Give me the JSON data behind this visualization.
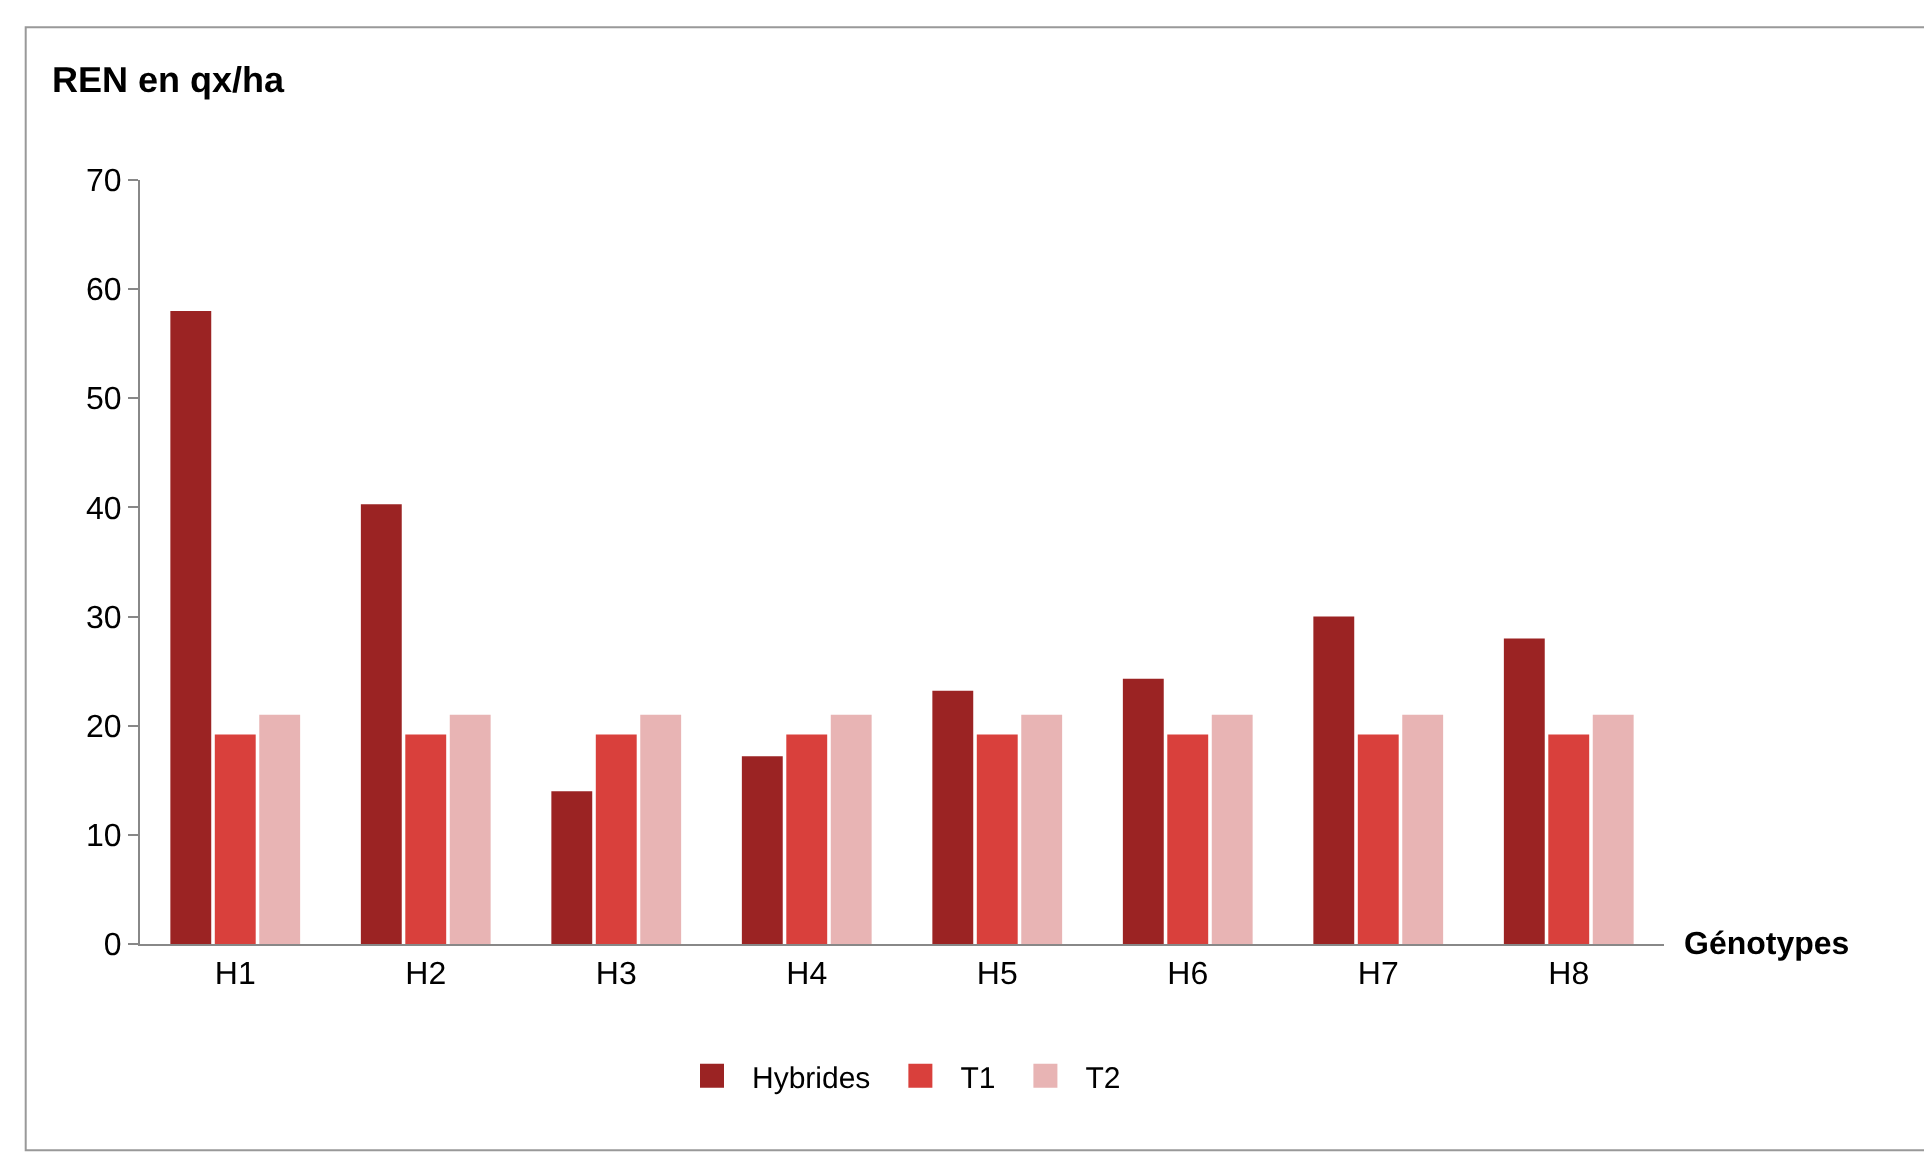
{
  "chart_data": {
    "type": "bar",
    "ylabel": "REN en qx/ha",
    "xlabel": "Génotypes",
    "categories": [
      "H1",
      "H2",
      "H3",
      "H4",
      "H5",
      "H6",
      "H7",
      "H8"
    ],
    "series": [
      {
        "name": "Hybrides",
        "color": "#9b2323",
        "values": [
          58,
          40.3,
          14,
          17.2,
          23.2,
          24.3,
          30,
          28
        ]
      },
      {
        "name": "T1",
        "color": "#d9403c",
        "values": [
          19.2,
          19.2,
          19.2,
          19.2,
          19.2,
          19.2,
          19.2,
          19.2
        ]
      },
      {
        "name": "T2",
        "color": "#e8b4b4",
        "values": [
          21,
          21,
          21,
          21,
          21,
          21,
          21,
          21
        ]
      }
    ],
    "ylim": [
      0,
      70
    ],
    "yticks": [
      0,
      10,
      20,
      30,
      40,
      50,
      60,
      70
    ],
    "legend": "bottom"
  }
}
